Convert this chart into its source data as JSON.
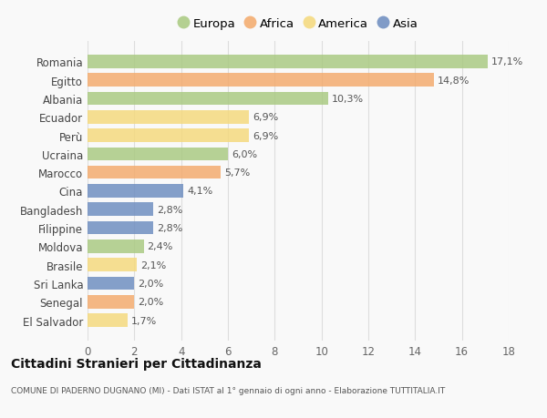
{
  "categories": [
    "Romania",
    "Egitto",
    "Albania",
    "Ecuador",
    "Perù",
    "Ucraina",
    "Marocco",
    "Cina",
    "Bangladesh",
    "Filippine",
    "Moldova",
    "Brasile",
    "Sri Lanka",
    "Senegal",
    "El Salvador"
  ],
  "values": [
    17.1,
    14.8,
    10.3,
    6.9,
    6.9,
    6.0,
    5.7,
    4.1,
    2.8,
    2.8,
    2.4,
    2.1,
    2.0,
    2.0,
    1.7
  ],
  "labels": [
    "17,1%",
    "14,8%",
    "10,3%",
    "6,9%",
    "6,9%",
    "6,0%",
    "5,7%",
    "4,1%",
    "2,8%",
    "2,8%",
    "2,4%",
    "2,1%",
    "2,0%",
    "2,0%",
    "1,7%"
  ],
  "continents": [
    "Europa",
    "Africa",
    "Europa",
    "America",
    "America",
    "Europa",
    "Africa",
    "Asia",
    "Asia",
    "Asia",
    "Europa",
    "America",
    "Asia",
    "Africa",
    "America"
  ],
  "colors": {
    "Europa": "#a8c97f",
    "Africa": "#f4a96a",
    "America": "#f5d97a",
    "Asia": "#6b8bbf"
  },
  "legend_order": [
    "Europa",
    "Africa",
    "America",
    "Asia"
  ],
  "title": "Cittadini Stranieri per Cittadinanza",
  "subtitle": "COMUNE DI PADERNO DUGNANO (MI) - Dati ISTAT al 1° gennaio di ogni anno - Elaborazione TUTTITALIA.IT",
  "xlim": [
    0,
    18
  ],
  "xticks": [
    0,
    2,
    4,
    6,
    8,
    10,
    12,
    14,
    16,
    18
  ],
  "background_color": "#f9f9f9",
  "grid_color": "#dddddd"
}
